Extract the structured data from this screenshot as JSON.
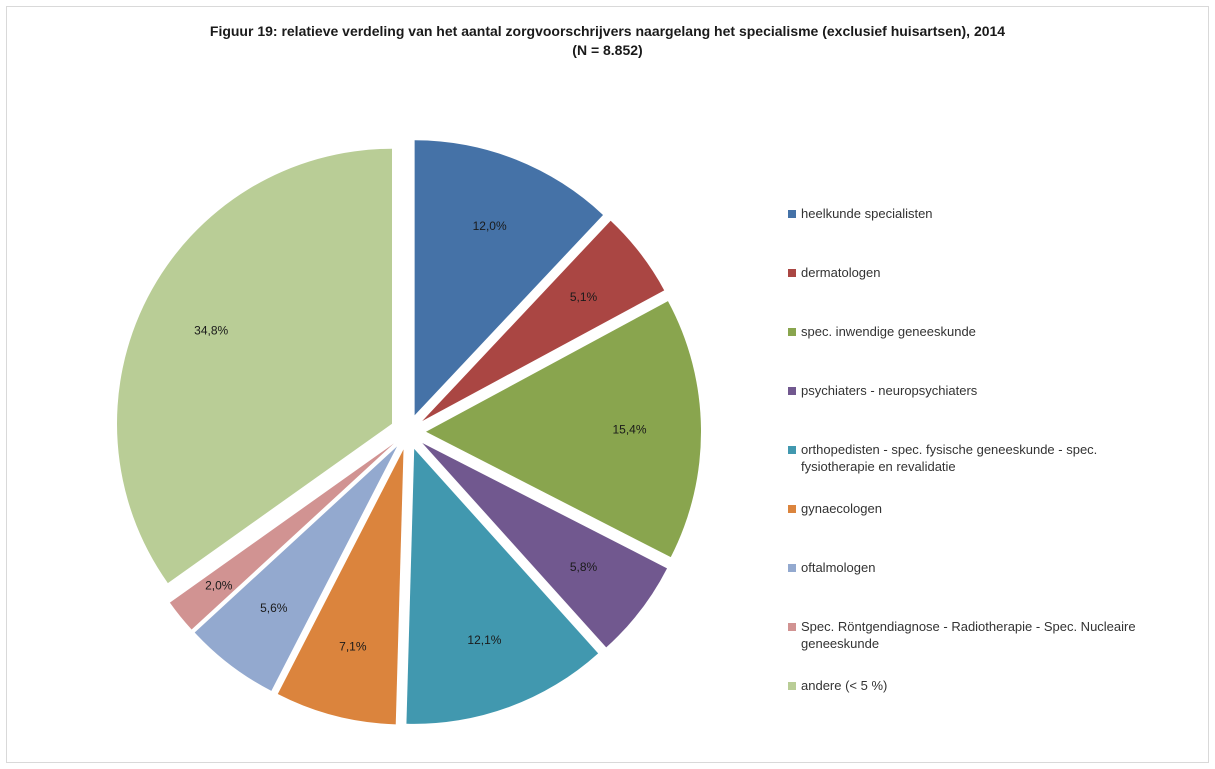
{
  "chart_data": {
    "type": "pie",
    "title": "Figuur 19: relatieve verdeling van het aantal zorgvoorschrijvers naargelang het specialisme (exclusief huisartsen), 2014",
    "subtitle": "(N = 8.852)",
    "exploded": true,
    "legend_position": "right",
    "slices": [
      {
        "label": "heelkunde specialisten",
        "value": 12.0,
        "display": "12,0%",
        "color": "#4572A7"
      },
      {
        "label": "dermatologen",
        "value": 5.1,
        "display": "5,1%",
        "color": "#AA4643"
      },
      {
        "label": "spec. inwendige geneeskunde",
        "value": 15.4,
        "display": "15,4%",
        "color": "#89A54E"
      },
      {
        "label": "psychiaters - neuropsychiaters",
        "value": 5.8,
        "display": "5,8%",
        "color": "#71588F"
      },
      {
        "label": "orthopedisten - spec. fysische geneeskunde - spec. fysiotherapie en revalidatie",
        "value": 12.1,
        "display": "12,1%",
        "color": "#4198AF"
      },
      {
        "label": "gynaecologen",
        "value": 7.1,
        "display": "7,1%",
        "color": "#DB843D"
      },
      {
        "label": "oftalmologen",
        "value": 5.6,
        "display": "5,6%",
        "color": "#93A9CF"
      },
      {
        "label": "Spec. Röntgendiagnose - Radiotherapie - Spec. Nucleaire geneeskunde",
        "value": 2.0,
        "display": "2,0%",
        "color": "#D19392"
      },
      {
        "label": "andere (< 5 %)",
        "value": 34.8,
        "display": "34,8%",
        "color": "#B9CD96"
      }
    ]
  }
}
